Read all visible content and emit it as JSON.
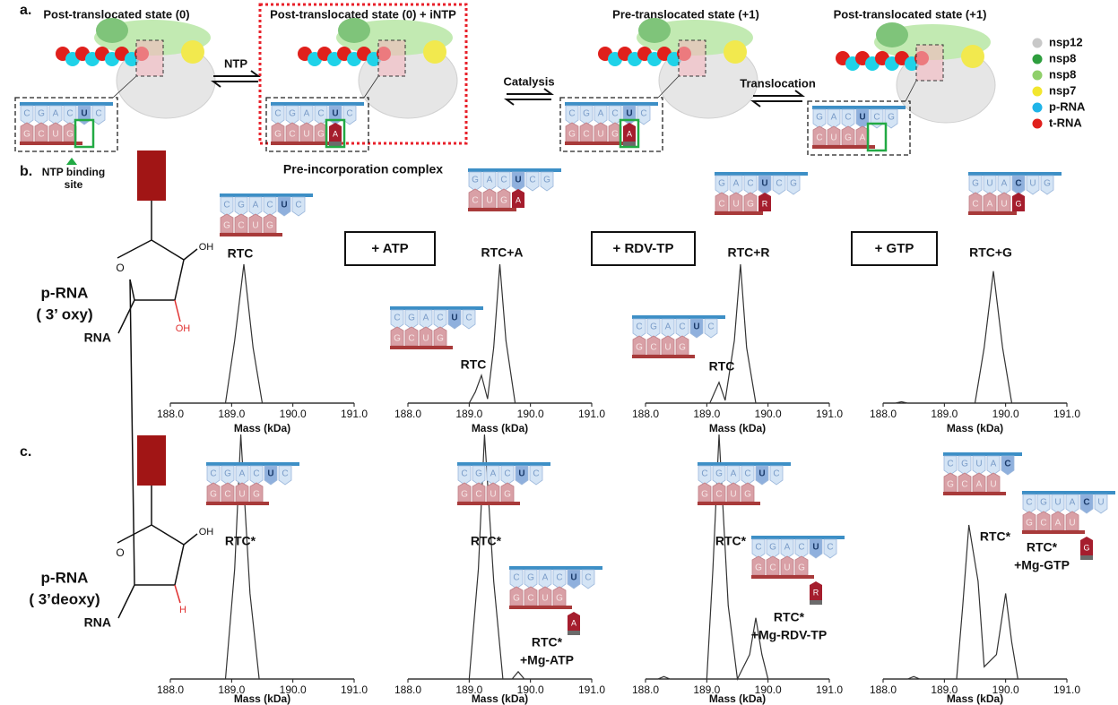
{
  "panel_labels": [
    "a.",
    "b.",
    "c."
  ],
  "states": [
    {
      "title": "Post-translocated state (0)",
      "inset": {
        "top": [
          "C",
          "G",
          "A",
          "C",
          "U",
          "C"
        ],
        "bottom": [
          "G",
          "C",
          "U",
          "G"
        ]
      }
    },
    {
      "title": "Post-translocated state (0) + iNTP",
      "inset": {
        "top": [
          "C",
          "G",
          "A",
          "C",
          "U",
          "C"
        ],
        "bottom": [
          "G",
          "C",
          "U",
          "G"
        ],
        "ntp": "A"
      }
    },
    {
      "title": "Pre-translocated state (+1)",
      "inset": {
        "top": [
          "C",
          "G",
          "A",
          "C",
          "U",
          "C"
        ],
        "bottom": [
          "G",
          "C",
          "U",
          "G"
        ],
        "ntp": "A"
      }
    },
    {
      "title": "Post-translocated state (+1)",
      "inset": {
        "top": [
          "G",
          "A",
          "C",
          "U",
          "C",
          "G"
        ],
        "bottom": [
          "C",
          "U",
          "G",
          "A"
        ]
      }
    }
  ],
  "arrows": [
    "NTP",
    "Catalysis",
    "Translocation"
  ],
  "ntp_site": [
    "NTP binding",
    "site"
  ],
  "pre_incorporation": "Pre-incorporation complex",
  "legend": [
    {
      "name": "nsp12",
      "color": "#c8c8c8"
    },
    {
      "name": "nsp8",
      "color": "#2e9e3e"
    },
    {
      "name": "nsp8",
      "color": "#8fcf6a"
    },
    {
      "name": "nsp7",
      "color": "#f2e62e"
    },
    {
      "name": "p-RNA",
      "color": "#1fb4e8"
    },
    {
      "name": "t-RNA",
      "color": "#e0201c"
    }
  ],
  "rows": [
    {
      "label": [
        "p-RNA",
        "( 3’ oxy)"
      ],
      "ring_o": "O",
      "oh": "OH",
      "rna": "RNA",
      "substituent": "OH"
    },
    {
      "label": [
        "p-RNA",
        "( 3’deoxy)"
      ],
      "ring_o": "O",
      "oh": "OH",
      "rna": "RNA",
      "substituent": "H"
    }
  ],
  "additions": [
    "+ ATP",
    "+ RDV-TP",
    "+ GTP"
  ],
  "chart_data": [
    {
      "type": "line",
      "xlabel": "Mass (kDa)",
      "xlim": [
        188,
        191
      ],
      "xticks": [
        {
          "value": 188,
          "label": "188.0"
        },
        {
          "value": 189,
          "label": "189.0"
        },
        {
          "value": 190,
          "label": "190.0"
        },
        {
          "value": 191,
          "label": "191.0"
        }
      ],
      "x": [
        188.0,
        188.9,
        189.05,
        189.2,
        189.35,
        189.5,
        191.0
      ],
      "values": [
        0,
        0,
        45,
        100,
        40,
        0,
        0
      ],
      "ylim": [
        0,
        100
      ],
      "color": "#333333",
      "annotations": [
        [
          "RTC"
        ]
      ],
      "insets": [
        {
          "top": [
            "C",
            "G",
            "A",
            "C",
            "U",
            "C"
          ],
          "bottom": [
            "G",
            "C",
            "U",
            "G"
          ]
        }
      ]
    },
    {
      "type": "line",
      "xlabel": "Mass (kDa)",
      "xlim": [
        188,
        191
      ],
      "xticks": [
        {
          "value": 188,
          "label": "188.0"
        },
        {
          "value": 189,
          "label": "189.0"
        },
        {
          "value": 190,
          "label": "190.0"
        },
        {
          "value": 191,
          "label": "191.0"
        }
      ],
      "x": [
        188.0,
        189.0,
        189.1,
        189.2,
        189.3,
        189.4,
        189.5,
        189.6,
        189.75,
        191.0
      ],
      "values": [
        0,
        0,
        8,
        20,
        3,
        40,
        100,
        45,
        0,
        0
      ],
      "ylim": [
        0,
        100
      ],
      "color": "#333333",
      "annotations": [
        [
          "RTC+A"
        ],
        [
          "RTC"
        ]
      ],
      "insets": [
        {
          "top": [
            "G",
            "A",
            "C",
            "U",
            "C",
            "G"
          ],
          "bottom": [
            "C",
            "U",
            "G"
          ],
          "ntp": "A"
        },
        {
          "top": [
            "C",
            "G",
            "A",
            "C",
            "U",
            "C"
          ],
          "bottom": [
            "G",
            "C",
            "U",
            "G"
          ]
        }
      ]
    },
    {
      "type": "line",
      "xlabel": "Mass (kDa)",
      "xlim": [
        188,
        191
      ],
      "xticks": [
        {
          "value": 188,
          "label": "188.0"
        },
        {
          "value": 189,
          "label": "189.0"
        },
        {
          "value": 190,
          "label": "190.0"
        },
        {
          "value": 191,
          "label": "191.0"
        }
      ],
      "x": [
        188.0,
        189.05,
        189.15,
        189.2,
        189.3,
        189.45,
        189.55,
        189.65,
        189.8,
        191.0
      ],
      "values": [
        0,
        0,
        10,
        15,
        2,
        45,
        100,
        40,
        0,
        0
      ],
      "ylim": [
        0,
        100
      ],
      "color": "#333333",
      "annotations": [
        [
          "RTC+R"
        ],
        [
          "RTC"
        ]
      ],
      "insets": [
        {
          "top": [
            "G",
            "A",
            "C",
            "U",
            "C",
            "G"
          ],
          "bottom": [
            "C",
            "U",
            "G"
          ],
          "ntp": "R"
        },
        {
          "top": [
            "C",
            "G",
            "A",
            "C",
            "U",
            "C"
          ],
          "bottom": [
            "G",
            "C",
            "U",
            "G"
          ]
        }
      ]
    },
    {
      "type": "line",
      "xlabel": "Mass (kDa)",
      "xlim": [
        188,
        191
      ],
      "xticks": [
        {
          "value": 188,
          "label": "188.0"
        },
        {
          "value": 189,
          "label": "189.0"
        },
        {
          "value": 190,
          "label": "190.0"
        },
        {
          "value": 191,
          "label": "191.0"
        }
      ],
      "x": [
        188.0,
        188.2,
        188.3,
        188.4,
        189.5,
        189.65,
        189.8,
        189.95,
        190.1,
        191.0
      ],
      "values": [
        0,
        0,
        1,
        0,
        0,
        40,
        95,
        40,
        0,
        0
      ],
      "ylim": [
        0,
        100
      ],
      "color": "#333333",
      "annotations": [
        [
          "RTC+G"
        ]
      ],
      "insets": [
        {
          "top": [
            "G",
            "U",
            "A",
            "C",
            "U",
            "G"
          ],
          "bottom": [
            "C",
            "A",
            "U"
          ],
          "ntp": "G"
        }
      ]
    },
    {
      "type": "line",
      "xlabel": "Mass (kDa)",
      "xlim": [
        188,
        191
      ],
      "xticks": [
        {
          "value": 188,
          "label": "188.0"
        },
        {
          "value": 189,
          "label": "189.0"
        },
        {
          "value": 190,
          "label": "190.0"
        },
        {
          "value": 191,
          "label": "191.0"
        }
      ],
      "x": [
        188.0,
        188.9,
        189.05,
        189.15,
        189.3,
        189.45,
        191.0
      ],
      "values": [
        0,
        0,
        45,
        100,
        35,
        0,
        0
      ],
      "ylim": [
        0,
        100
      ],
      "color": "#333333",
      "annotations": [
        [
          "RTC*"
        ]
      ],
      "insets": [
        {
          "top": [
            "C",
            "G",
            "A",
            "C",
            "U",
            "C"
          ],
          "bottom": [
            "G",
            "C",
            "U",
            "G"
          ]
        }
      ]
    },
    {
      "type": "line",
      "xlabel": "Mass (kDa)",
      "xlim": [
        188,
        191
      ],
      "xticks": [
        {
          "value": 188,
          "label": "188.0"
        },
        {
          "value": 189,
          "label": "189.0"
        },
        {
          "value": 190,
          "label": "190.0"
        },
        {
          "value": 191,
          "label": "191.0"
        }
      ],
      "x": [
        188.0,
        189.0,
        189.15,
        189.25,
        189.4,
        189.55,
        189.7,
        189.8,
        189.9,
        191.0
      ],
      "values": [
        0,
        0,
        45,
        100,
        40,
        0,
        0,
        3,
        0,
        0
      ],
      "ylim": [
        0,
        100
      ],
      "color": "#333333",
      "annotations": [
        [
          "RTC*"
        ],
        [
          "RTC*",
          "+Mg-ATP"
        ]
      ],
      "insets": [
        {
          "top": [
            "C",
            "G",
            "A",
            "C",
            "U",
            "C"
          ],
          "bottom": [
            "G",
            "C",
            "U",
            "G"
          ]
        },
        {
          "top": [
            "C",
            "G",
            "A",
            "C",
            "U",
            "C"
          ],
          "bottom": [
            "G",
            "C",
            "U",
            "G"
          ],
          "ntp": "A"
        }
      ]
    },
    {
      "type": "line",
      "xlabel": "Mass (kDa)",
      "xlim": [
        188,
        191
      ],
      "xticks": [
        {
          "value": 188,
          "label": "188.0"
        },
        {
          "value": 189,
          "label": "189.0"
        },
        {
          "value": 190,
          "label": "190.0"
        },
        {
          "value": 191,
          "label": "191.0"
        }
      ],
      "x": [
        188.0,
        188.2,
        188.3,
        188.4,
        189.0,
        189.1,
        189.2,
        189.35,
        189.5,
        189.7,
        189.8,
        189.9,
        190.0,
        191.0
      ],
      "values": [
        0,
        0,
        1,
        0,
        0,
        45,
        100,
        30,
        0,
        10,
        25,
        10,
        0,
        0
      ],
      "ylim": [
        0,
        100
      ],
      "color": "#333333",
      "annotations": [
        [
          "RTC*"
        ],
        [
          "RTC*",
          "+Mg-RDV-TP"
        ]
      ],
      "insets": [
        {
          "top": [
            "C",
            "G",
            "A",
            "C",
            "U",
            "C"
          ],
          "bottom": [
            "G",
            "C",
            "U",
            "G"
          ]
        },
        {
          "top": [
            "C",
            "G",
            "A",
            "C",
            "U",
            "C"
          ],
          "bottom": [
            "G",
            "C",
            "U",
            "G"
          ],
          "ntp": "R"
        }
      ]
    },
    {
      "type": "line",
      "xlabel": "Mass (kDa)",
      "xlim": [
        188,
        191
      ],
      "xticks": [
        {
          "value": 188,
          "label": "188.0"
        },
        {
          "value": 189,
          "label": "189.0"
        },
        {
          "value": 190,
          "label": "190.0"
        },
        {
          "value": 191,
          "label": "191.0"
        }
      ],
      "x": [
        188.0,
        188.4,
        188.5,
        188.6,
        189.2,
        189.3,
        189.4,
        189.55,
        189.65,
        189.85,
        190.0,
        190.1,
        190.2,
        191.0
      ],
      "values": [
        0,
        0,
        1,
        0,
        0,
        30,
        63,
        40,
        5,
        10,
        35,
        15,
        0,
        0
      ],
      "ylim": [
        0,
        100
      ],
      "color": "#333333",
      "annotations": [
        [
          "RTC*"
        ],
        [
          "RTC*",
          "+Mg-GTP"
        ]
      ],
      "insets": [
        {
          "top": [
            "C",
            "G",
            "U",
            "A",
            "C"
          ],
          "bottom": [
            "G",
            "C",
            "A",
            "U"
          ]
        },
        {
          "top": [
            "C",
            "G",
            "U",
            "A",
            "C",
            "U"
          ],
          "bottom": [
            "G",
            "C",
            "A",
            "U"
          ],
          "ntp": "G"
        }
      ]
    }
  ]
}
